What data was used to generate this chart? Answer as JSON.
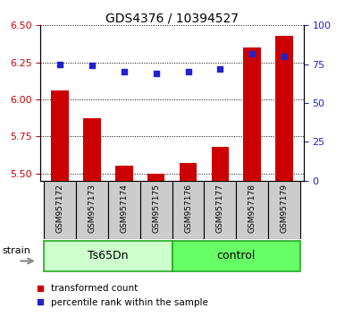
{
  "title": "GDS4376 / 10394527",
  "samples": [
    "GSM957172",
    "GSM957173",
    "GSM957174",
    "GSM957175",
    "GSM957176",
    "GSM957177",
    "GSM957178",
    "GSM957179"
  ],
  "group_labels": [
    "Ts65Dn",
    "control"
  ],
  "transformed_count": [
    6.06,
    5.87,
    5.55,
    5.5,
    5.57,
    5.68,
    6.35,
    6.43
  ],
  "percentile_rank": [
    75,
    74,
    70,
    69,
    70,
    72,
    82,
    80
  ],
  "ylim_left": [
    5.45,
    6.5
  ],
  "ylim_right": [
    0,
    100
  ],
  "yticks_left": [
    5.5,
    5.75,
    6.0,
    6.25,
    6.5
  ],
  "yticks_right": [
    0,
    25,
    50,
    75,
    100
  ],
  "bar_color": "#cc0000",
  "dot_color": "#2222cc",
  "grid_color": "#000000",
  "bg_color": "#ffffff",
  "label_color_left": "#cc0000",
  "label_color_right": "#2222cc",
  "group_color_1": "#ccffcc",
  "group_color_2": "#66ff66",
  "group_border_color": "#22aa22",
  "sample_box_color": "#cccccc",
  "legend_bar": "transformed count",
  "legend_dot": "percentile rank within the sample"
}
